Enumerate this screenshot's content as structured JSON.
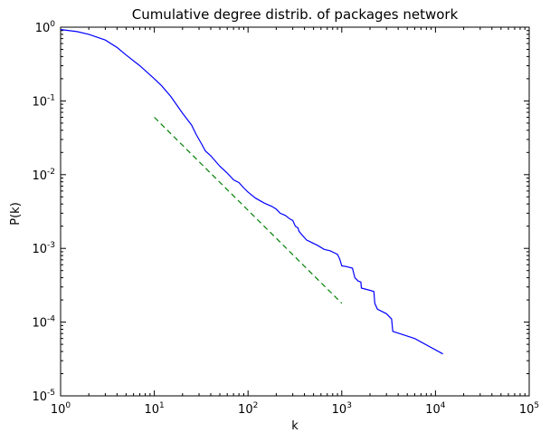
{
  "chart_data": {
    "type": "line",
    "title": "Cumulative degree distrib. of packages network",
    "xlabel": "k",
    "ylabel": "P(k)",
    "xscale": "log",
    "yscale": "log",
    "xlim": [
      1,
      100000
    ],
    "ylim": [
      1e-05,
      1
    ],
    "grid": false,
    "x_ticks": [
      {
        "base": "10",
        "exp": "0",
        "value": 1
      },
      {
        "base": "10",
        "exp": "1",
        "value": 10
      },
      {
        "base": "10",
        "exp": "2",
        "value": 100
      },
      {
        "base": "10",
        "exp": "3",
        "value": 1000
      },
      {
        "base": "10",
        "exp": "4",
        "value": 10000
      },
      {
        "base": "10",
        "exp": "5",
        "value": 100000
      }
    ],
    "y_ticks": [
      {
        "base": "10",
        "exp": "0",
        "value": 1
      },
      {
        "base": "10",
        "exp": "-1",
        "value": 0.1
      },
      {
        "base": "10",
        "exp": "-2",
        "value": 0.01
      },
      {
        "base": "10",
        "exp": "-3",
        "value": 0.001
      },
      {
        "base": "10",
        "exp": "-4",
        "value": 0.0001
      },
      {
        "base": "10",
        "exp": "-5",
        "value": 1e-05
      }
    ],
    "series": [
      {
        "style": "solid",
        "color": "#0000ff",
        "points": [
          [
            1,
            0.93
          ],
          [
            1.5,
            0.87
          ],
          [
            2,
            0.8
          ],
          [
            3,
            0.67
          ],
          [
            4,
            0.53
          ],
          [
            5,
            0.42
          ],
          [
            7,
            0.3
          ],
          [
            10,
            0.2
          ],
          [
            12,
            0.16
          ],
          [
            15,
            0.115
          ],
          [
            20,
            0.068
          ],
          [
            25,
            0.047
          ],
          [
            28,
            0.035
          ],
          [
            32,
            0.026
          ],
          [
            35,
            0.021
          ],
          [
            40,
            0.018
          ],
          [
            50,
            0.013
          ],
          [
            60,
            0.0105
          ],
          [
            70,
            0.0085
          ],
          [
            80,
            0.0078
          ],
          [
            90,
            0.0066
          ],
          [
            100,
            0.0058
          ],
          [
            120,
            0.0048
          ],
          [
            150,
            0.0041
          ],
          [
            180,
            0.0037
          ],
          [
            200,
            0.0034
          ],
          [
            220,
            0.003
          ],
          [
            250,
            0.0028
          ],
          [
            280,
            0.0025
          ],
          [
            300,
            0.0024
          ],
          [
            320,
            0.002
          ],
          [
            340,
            0.0019
          ],
          [
            350,
            0.0017
          ],
          [
            380,
            0.0015
          ],
          [
            420,
            0.0013
          ],
          [
            480,
            0.0012
          ],
          [
            550,
            0.0011
          ],
          [
            650,
            0.00097
          ],
          [
            750,
            0.00093
          ],
          [
            850,
            0.00086
          ],
          [
            900,
            0.00083
          ],
          [
            950,
            0.00072
          ],
          [
            1000,
            0.00058
          ],
          [
            1100,
            0.00057
          ],
          [
            1300,
            0.00054
          ],
          [
            1380,
            0.0004
          ],
          [
            1500,
            0.00036
          ],
          [
            1600,
            0.00035
          ],
          [
            1620,
            0.00029
          ],
          [
            2000,
            0.00027
          ],
          [
            2200,
            0.00026
          ],
          [
            2250,
            0.00018
          ],
          [
            2400,
            0.00015
          ],
          [
            3000,
            0.00013
          ],
          [
            3400,
            0.00011
          ],
          [
            3500,
            7.5e-05
          ],
          [
            6000,
            6e-05
          ],
          [
            12000,
            3.7e-05
          ]
        ]
      },
      {
        "style": "dashed",
        "color": "#008000",
        "points": [
          [
            10,
            0.06
          ],
          [
            1000,
            0.00018
          ]
        ]
      }
    ]
  }
}
